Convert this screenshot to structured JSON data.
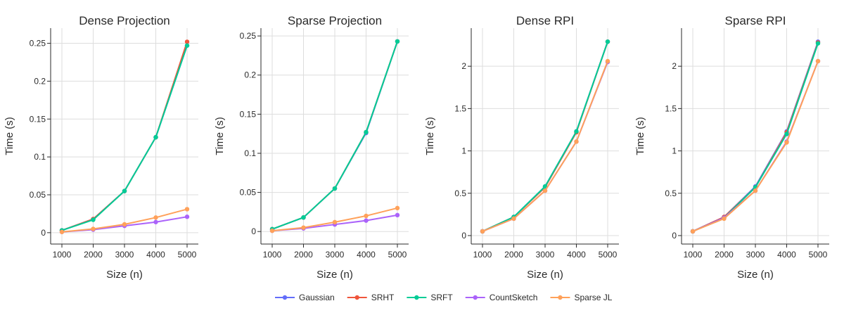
{
  "legend": {
    "placement": "bottom-center",
    "items": [
      {
        "name": "Gaussian",
        "color": "#636efa"
      },
      {
        "name": "SRHT",
        "color": "#ef553b"
      },
      {
        "name": "SRFT",
        "color": "#00cc96"
      },
      {
        "name": "CountSketch",
        "color": "#ab63fa"
      },
      {
        "name": "Sparse JL",
        "color": "#ffa15a"
      }
    ]
  },
  "chart_data": [
    {
      "type": "line",
      "title": "Dense Projection",
      "xlabel": "Size (n)",
      "ylabel": "Time (s)",
      "grid": true,
      "x": [
        1000,
        2000,
        3000,
        4000,
        5000
      ],
      "xticks": [
        "1000",
        "2000",
        "3000",
        "4000",
        "5000"
      ],
      "ylim": [
        -0.015,
        0.27
      ],
      "yticks": [
        0,
        0.05,
        0.1,
        0.15,
        0.2,
        0.25
      ],
      "ytick_labels": [
        "0",
        "0.05",
        "0.1",
        "0.15",
        "0.2",
        "0.25"
      ],
      "series": [
        {
          "name": "Gaussian",
          "color": "#636efa",
          "values": [
            0.003,
            0.018,
            0.055,
            0.126,
            0.247
          ]
        },
        {
          "name": "SRHT",
          "color": "#ef553b",
          "values": [
            0.003,
            0.018,
            0.055,
            0.126,
            0.252
          ]
        },
        {
          "name": "SRFT",
          "color": "#00cc96",
          "values": [
            0.003,
            0.017,
            0.055,
            0.126,
            0.247
          ]
        },
        {
          "name": "CountSketch",
          "color": "#ab63fa",
          "values": [
            0.001,
            0.004,
            0.009,
            0.014,
            0.021
          ]
        },
        {
          "name": "Sparse JL",
          "color": "#ffa15a",
          "values": [
            0.001,
            0.005,
            0.011,
            0.02,
            0.031
          ]
        }
      ]
    },
    {
      "type": "line",
      "title": "Sparse Projection",
      "xlabel": "Size (n)",
      "ylabel": "Time (s)",
      "grid": true,
      "x": [
        1000,
        2000,
        3000,
        4000,
        5000
      ],
      "xticks": [
        "1000",
        "2000",
        "3000",
        "4000",
        "5000"
      ],
      "ylim": [
        -0.016,
        0.26
      ],
      "yticks": [
        0,
        0.05,
        0.1,
        0.15,
        0.2,
        0.25
      ],
      "ytick_labels": [
        "0",
        "0.05",
        "0.1",
        "0.15",
        "0.2",
        "0.25"
      ],
      "series": [
        {
          "name": "Gaussian",
          "color": "#636efa",
          "values": [
            0.003,
            0.018,
            0.055,
            0.126,
            0.243
          ]
        },
        {
          "name": "SRHT",
          "color": "#ef553b",
          "values": [
            0.003,
            0.018,
            0.055,
            0.127,
            0.243
          ]
        },
        {
          "name": "SRFT",
          "color": "#00cc96",
          "values": [
            0.003,
            0.018,
            0.055,
            0.127,
            0.243
          ]
        },
        {
          "name": "CountSketch",
          "color": "#ab63fa",
          "values": [
            0.001,
            0.004,
            0.009,
            0.014,
            0.021
          ]
        },
        {
          "name": "Sparse JL",
          "color": "#ffa15a",
          "values": [
            0.001,
            0.005,
            0.012,
            0.02,
            0.03
          ]
        }
      ]
    },
    {
      "type": "line",
      "title": "Dense RPI",
      "xlabel": "Size (n)",
      "ylabel": "Time (s)",
      "grid": true,
      "x": [
        1000,
        2000,
        3000,
        4000,
        5000
      ],
      "xticks": [
        "1000",
        "2000",
        "3000",
        "4000",
        "5000"
      ],
      "ylim": [
        -0.1,
        2.45
      ],
      "yticks": [
        0,
        0.5,
        1,
        1.5,
        2
      ],
      "ytick_labels": [
        "0",
        "0.5",
        "1",
        "1.5",
        "2"
      ],
      "series": [
        {
          "name": "Gaussian",
          "color": "#636efa",
          "values": [
            0.05,
            0.22,
            0.58,
            1.23,
            2.29
          ]
        },
        {
          "name": "SRHT",
          "color": "#ef553b",
          "values": [
            0.05,
            0.22,
            0.57,
            1.22,
            2.29
          ]
        },
        {
          "name": "SRFT",
          "color": "#00cc96",
          "values": [
            0.05,
            0.22,
            0.58,
            1.23,
            2.29
          ]
        },
        {
          "name": "CountSketch",
          "color": "#ab63fa",
          "values": [
            0.05,
            0.2,
            0.53,
            1.11,
            2.05
          ]
        },
        {
          "name": "Sparse JL",
          "color": "#ffa15a",
          "values": [
            0.05,
            0.2,
            0.53,
            1.11,
            2.06
          ]
        }
      ]
    },
    {
      "type": "line",
      "title": "Sparse RPI",
      "xlabel": "Size (n)",
      "ylabel": "Time (s)",
      "grid": true,
      "x": [
        1000,
        2000,
        3000,
        4000,
        5000
      ],
      "xticks": [
        "1000",
        "2000",
        "3000",
        "4000",
        "5000"
      ],
      "ylim": [
        -0.1,
        2.45
      ],
      "yticks": [
        0,
        0.5,
        1,
        1.5,
        2
      ],
      "ytick_labels": [
        "0",
        "0.5",
        "1",
        "1.5",
        "2"
      ],
      "series": [
        {
          "name": "Gaussian",
          "color": "#636efa",
          "values": [
            0.05,
            0.22,
            0.58,
            1.23,
            2.29
          ]
        },
        {
          "name": "SRHT",
          "color": "#ef553b",
          "values": [
            0.05,
            0.22,
            0.57,
            1.22,
            2.28
          ]
        },
        {
          "name": "SRFT",
          "color": "#00cc96",
          "values": [
            0.05,
            0.21,
            0.57,
            1.2,
            2.27
          ]
        },
        {
          "name": "CountSketch",
          "color": "#ab63fa",
          "values": [
            0.05,
            0.21,
            0.53,
            1.11,
            2.06
          ]
        },
        {
          "name": "Sparse JL",
          "color": "#ffa15a",
          "values": [
            0.05,
            0.2,
            0.53,
            1.1,
            2.06
          ]
        }
      ]
    }
  ]
}
